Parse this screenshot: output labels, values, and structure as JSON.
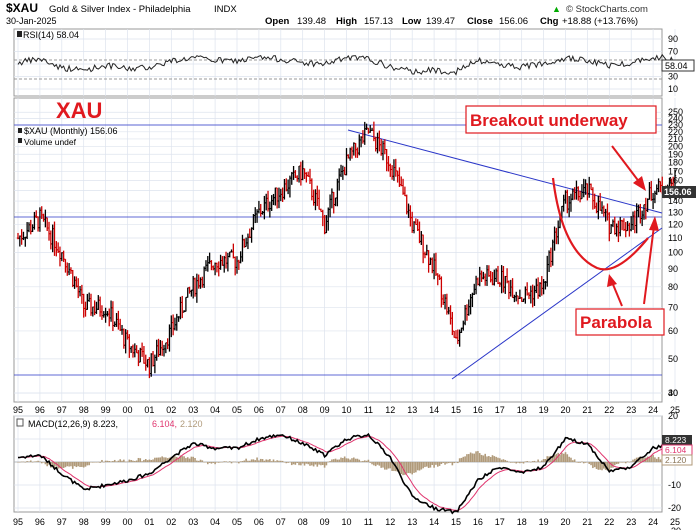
{
  "header": {
    "symbol": "$XAU",
    "name": "Gold & Silver Index - Philadelphia",
    "exchange": "INDX",
    "date": "30-Jan-2025",
    "open_label": "Open",
    "open": "139.48",
    "high_label": "High",
    "high": "157.13",
    "low_label": "Low",
    "low": "139.47",
    "close_label": "Close",
    "close": "156.06",
    "chg_label": "Chg",
    "chg": "+18.88 (+13.76%)",
    "watermark": "© StockCharts.com",
    "watermark_up": "▲"
  },
  "rsi": {
    "label": "RSI(14) 58.04",
    "value_tag": "58.04",
    "ticks": [
      "90",
      "70",
      "50",
      "30",
      "10"
    ]
  },
  "price": {
    "big_label": "XAU",
    "legend_main": "$XAU (Monthly) 156.06",
    "legend_volume": "Volume undef",
    "last_tag": "156.06",
    "ticks": [
      "250",
      "240",
      "230",
      "220",
      "210",
      "200",
      "190",
      "180",
      "170",
      "160",
      "150",
      "140",
      "130",
      "120",
      "110",
      "100",
      "90",
      "80",
      "70",
      "60",
      "50",
      "40"
    ]
  },
  "annotations": {
    "breakout": "Breakout underway",
    "parabola": "Parabola"
  },
  "macd": {
    "label_main": "MACD(12,26,9) 8.223,",
    "label_signal": "6.104,",
    "label_hist": "2.120",
    "tags": [
      "8.223",
      "6.104",
      "2.120"
    ],
    "ticks": [
      "30",
      "20",
      "10",
      "0",
      "-10",
      "-20",
      "-30"
    ]
  },
  "xaxis": {
    "labels": [
      "95",
      "96",
      "97",
      "98",
      "99",
      "00",
      "01",
      "02",
      "03",
      "04",
      "05",
      "06",
      "07",
      "08",
      "09",
      "10",
      "11",
      "12",
      "13",
      "14",
      "15",
      "16",
      "17",
      "18",
      "19",
      "20",
      "21",
      "22",
      "23",
      "24",
      "25"
    ]
  },
  "colors": {
    "annotation_red": "#e0191f",
    "trendline_blue": "#2a36c8",
    "grid": "#dde3ee",
    "tag_dark": "#333333",
    "macd_signal": "#e0356e",
    "macd_hist": "#b09a7a",
    "up_bar": "#000000",
    "down_bar": "#cc0000"
  },
  "chart_data": {
    "type": "line",
    "title": "$XAU Gold & Silver Index - Philadelphia (Monthly)",
    "x": [
      "1995",
      "1996",
      "1997",
      "1998",
      "1999",
      "2000",
      "2001",
      "2002",
      "2003",
      "2004",
      "2005",
      "2006",
      "2007",
      "2008",
      "2009",
      "2010",
      "2011",
      "2012",
      "2013",
      "2014",
      "2015",
      "2016",
      "2017",
      "2018",
      "2019",
      "2020",
      "2021",
      "2022",
      "2023",
      "2024",
      "2025"
    ],
    "series": [
      {
        "name": "$XAU",
        "values": [
          110,
          125,
          100,
          70,
          70,
          55,
          48,
          60,
          80,
          95,
          95,
          130,
          150,
          170,
          120,
          180,
          220,
          180,
          120,
          90,
          55,
          85,
          85,
          75,
          80,
          140,
          150,
          120,
          120,
          150,
          156
        ]
      },
      {
        "name": "RSI(14)",
        "values": [
          52,
          58,
          44,
          40,
          48,
          42,
          45,
          55,
          60,
          56,
          55,
          60,
          58,
          52,
          50,
          60,
          58,
          45,
          38,
          40,
          38,
          55,
          50,
          45,
          52,
          60,
          55,
          48,
          52,
          62,
          58
        ]
      },
      {
        "name": "MACD(12,26,9)",
        "values": [
          2,
          3,
          -5,
          -12,
          -10,
          -8,
          -5,
          2,
          8,
          6,
          6,
          10,
          12,
          8,
          3,
          10,
          12,
          2,
          -15,
          -20,
          -22,
          -8,
          -2,
          -5,
          -2,
          10,
          8,
          -4,
          -2,
          6,
          8.223
        ]
      }
    ],
    "scale": "log",
    "ylim": [
      40,
      250
    ],
    "grid": true,
    "legend": "top-left"
  }
}
